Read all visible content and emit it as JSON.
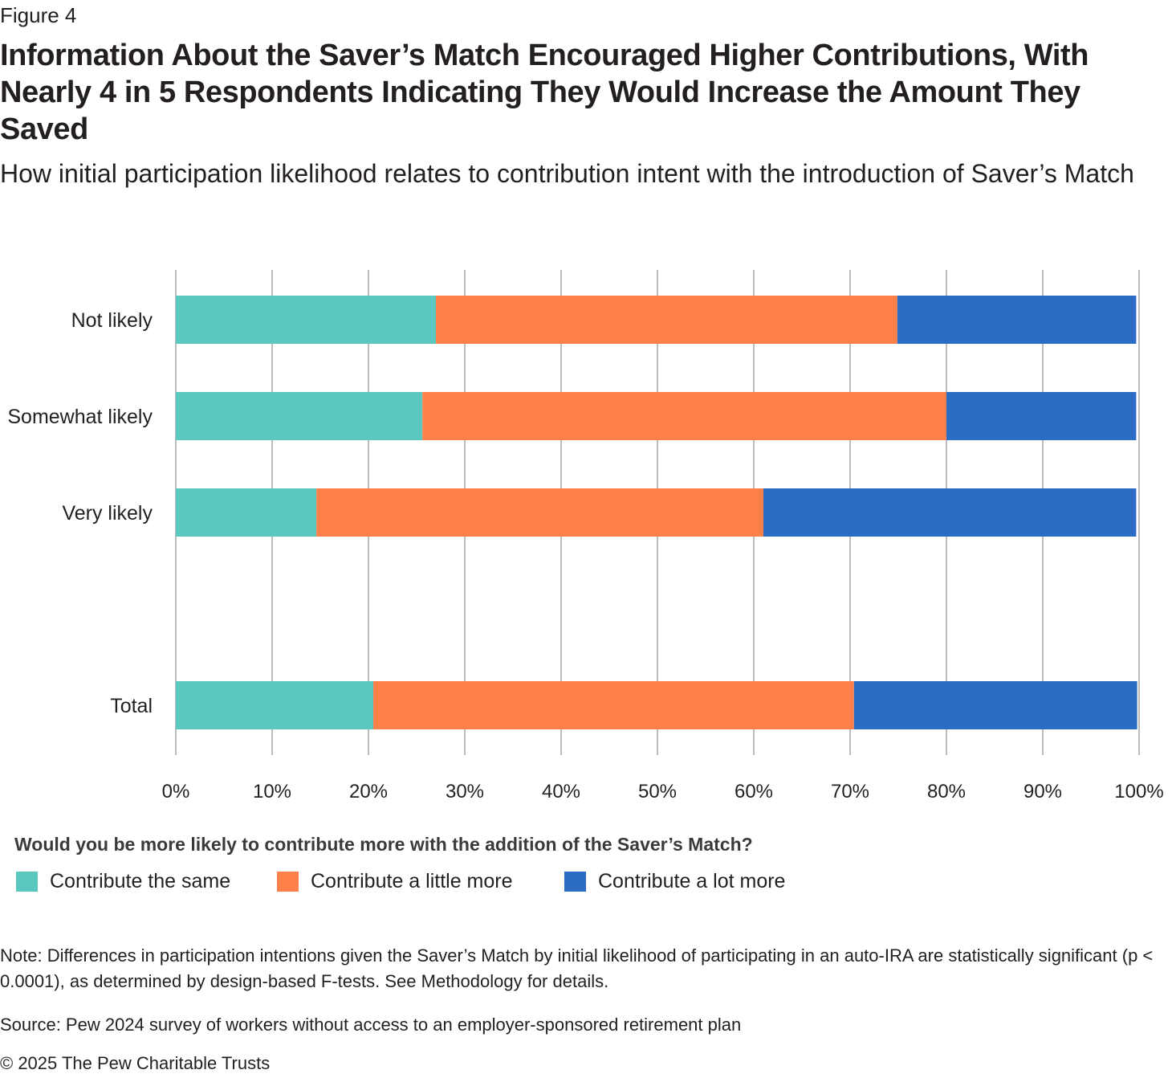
{
  "figure_label": "Figure 4",
  "title": "Information About the Saver’s Match Encouraged Higher Contributions, With Nearly 4 in 5 Respondents Indicating They Would Increase the Amount They Saved",
  "subtitle": "How initial participation likelihood relates to contribution intent with the introduction of Saver’s Match",
  "legend_title": "Would you be more likely to contribute more with the addition of the Saver’s Match?",
  "note": "Note: Differences in participation intentions given the Saver’s Match by initial likelihood of participating in an auto-IRA are statistically significant (p < 0.0001), as determined by design-based F-tests. See Methodology for details.",
  "source": "Source: Pew 2024 survey of workers without access to an employer-sponsored retirement plan",
  "copyright": "© 2025 The Pew Charitable Trusts",
  "chart_data": {
    "type": "bar",
    "orientation": "horizontal",
    "stacked": true,
    "categories": [
      "Not likely",
      "Somewhat likely",
      "Very likely",
      "Total"
    ],
    "series": [
      {
        "name": "Contribute the same",
        "color": "#5bc8bf",
        "values": [
          27,
          25.6,
          14.6,
          20.5
        ]
      },
      {
        "name": "Contribute a little more",
        "color": "#ff8049",
        "values": [
          47.9,
          54.4,
          46.4,
          49.9
        ]
      },
      {
        "name": "Contribute a lot more",
        "color": "#2b6dc4",
        "values": [
          24.8,
          19.7,
          38.7,
          29.4
        ]
      }
    ],
    "xlim": [
      0,
      100
    ],
    "xticks": [
      "0%",
      "10%",
      "20%",
      "30%",
      "40%",
      "50%",
      "60%",
      "70%",
      "80%",
      "90%",
      "100%"
    ],
    "grid": true,
    "legend_position": "bottom"
  }
}
